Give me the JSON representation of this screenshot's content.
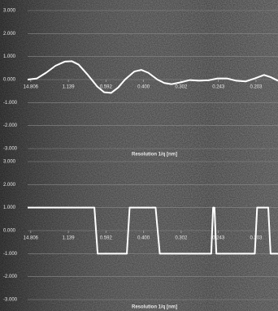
{
  "chart_data": [
    {
      "type": "line",
      "x_label": "Resolution 1/q [nm]",
      "grid": true,
      "xlim": [
        0,
        5.4
      ],
      "ylim": [
        -3,
        3
      ],
      "xticks": [
        {
          "value": 0.0675,
          "label": "14.806"
        },
        {
          "value": 0.878,
          "label": "1.139"
        },
        {
          "value": 1.689,
          "label": "0.592"
        },
        {
          "value": 2.5,
          "label": "0.400"
        },
        {
          "value": 3.311,
          "label": "0.302"
        },
        {
          "value": 4.115,
          "label": "0.243"
        },
        {
          "value": 4.926,
          "label": "0.203"
        }
      ],
      "yticks": [
        {
          "value": 3,
          "label": "3.000"
        },
        {
          "value": 2,
          "label": "2.000"
        },
        {
          "value": 1,
          "label": "1.000"
        },
        {
          "value": 0,
          "label": "0.000"
        },
        {
          "value": -1,
          "label": "-1.000"
        },
        {
          "value": -2,
          "label": "-2.000"
        },
        {
          "value": -3,
          "label": "-3.000"
        }
      ],
      "x": [
        0.0,
        0.2,
        0.4,
        0.6,
        0.8,
        0.95,
        1.1,
        1.3,
        1.5,
        1.65,
        1.8,
        1.95,
        2.1,
        2.3,
        2.45,
        2.6,
        2.8,
        2.95,
        3.1,
        3.3,
        3.5,
        3.7,
        3.9,
        4.1,
        4.3,
        4.5,
        4.7,
        4.9,
        5.1,
        5.25,
        5.4
      ],
      "series": [
        {
          "color": "#ffffff",
          "values": [
            0.0,
            0.05,
            0.3,
            0.6,
            0.78,
            0.8,
            0.65,
            0.2,
            -0.3,
            -0.55,
            -0.58,
            -0.35,
            0.0,
            0.35,
            0.42,
            0.3,
            0.0,
            -0.15,
            -0.2,
            -0.12,
            -0.02,
            -0.05,
            -0.03,
            0.05,
            0.05,
            -0.05,
            -0.08,
            0.05,
            0.2,
            0.1,
            -0.05
          ]
        }
      ]
    },
    {
      "type": "line",
      "x_label": "Resolution 1/q [nm]",
      "grid": true,
      "xlim": [
        0,
        5.4
      ],
      "ylim": [
        -3,
        3
      ],
      "xticks": [
        {
          "value": 0.0675,
          "label": "14.806"
        },
        {
          "value": 0.878,
          "label": "1.139"
        },
        {
          "value": 1.689,
          "label": "0.592"
        },
        {
          "value": 2.5,
          "label": "0.400"
        },
        {
          "value": 3.311,
          "label": "0.302"
        },
        {
          "value": 4.115,
          "label": "0.243"
        },
        {
          "value": 4.926,
          "label": "0.203"
        }
      ],
      "yticks": [
        {
          "value": 3,
          "label": "3.000"
        },
        {
          "value": 2,
          "label": "2.000"
        },
        {
          "value": 1,
          "label": "1.000"
        },
        {
          "value": 0,
          "label": "0.000"
        },
        {
          "value": -1,
          "label": "-1.000"
        },
        {
          "value": -2,
          "label": "-2.000"
        },
        {
          "value": -3,
          "label": "-3.000"
        }
      ],
      "x": [
        0.0,
        1.44,
        1.51,
        2.14,
        2.2,
        2.76,
        2.85,
        3.96,
        4.0,
        4.03,
        4.07,
        4.9,
        4.95,
        5.19,
        5.24,
        5.4
      ],
      "series": [
        {
          "color": "#ffffff",
          "values": [
            1,
            1,
            -1,
            -1,
            1,
            1,
            -1,
            -1,
            1,
            1,
            -1,
            -1,
            1,
            1,
            -1,
            -1
          ]
        }
      ]
    }
  ]
}
